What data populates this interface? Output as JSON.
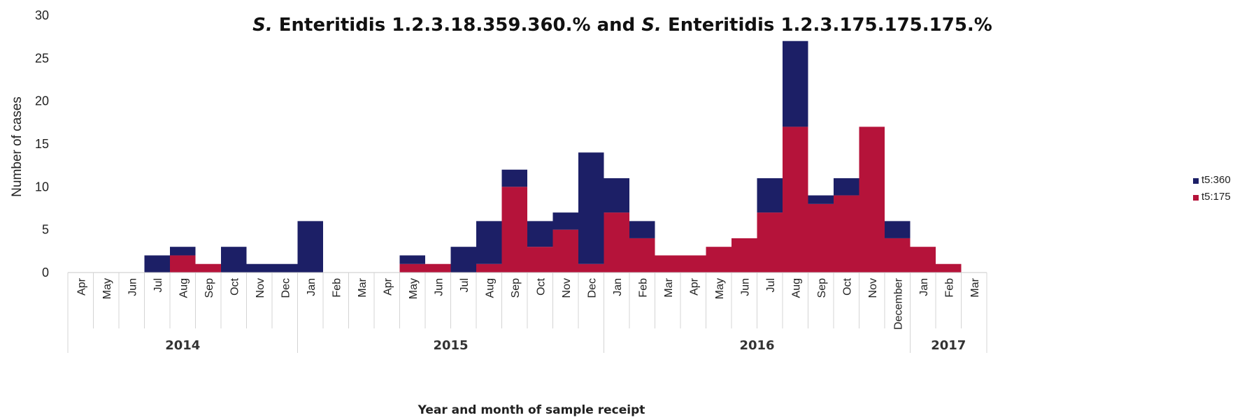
{
  "chart_data": {
    "type": "bar",
    "stacked": true,
    "title_part1": "S.",
    "title_part2": " Enteritidis 1.2.3.18.359.360.% and ",
    "title_part3": "S.",
    "title_part4": " Enteritidis 1.2.3.175.175.175.%",
    "ylabel": "Number of cases",
    "xlabel": "Year and month of sample receipt",
    "ylim": [
      0,
      30
    ],
    "yticks": [
      "0",
      "5",
      "10",
      "15",
      "20",
      "25",
      "30"
    ],
    "grid": false,
    "legend_position": "right",
    "categories": [
      "Apr",
      "May",
      "Jun",
      "Jul",
      "Aug",
      "Sep",
      "Oct",
      "Nov",
      "Dec",
      "Jan",
      "Feb",
      "Mar",
      "Apr",
      "May",
      "Jun",
      "Jul",
      "Aug",
      "Sep",
      "Oct",
      "Nov",
      "Dec",
      "Jan",
      "Feb",
      "Mar",
      "Apr",
      "May",
      "Jun",
      "Jul",
      "Aug",
      "Sep",
      "Oct",
      "Nov",
      "December",
      "Jan",
      "Feb",
      "Mar"
    ],
    "years": [
      {
        "label": "2014",
        "start": 0,
        "end": 9
      },
      {
        "label": "2015",
        "start": 9,
        "end": 21
      },
      {
        "label": "2016",
        "start": 21,
        "end": 33
      },
      {
        "label": "2017",
        "start": 33,
        "end": 36
      }
    ],
    "series": [
      {
        "name": "t5:175",
        "color": "#b5133a",
        "values": [
          0,
          0,
          0,
          0,
          2,
          1,
          0,
          0,
          0,
          0,
          0,
          0,
          0,
          1,
          1,
          0,
          1,
          10,
          3,
          5,
          1,
          7,
          4,
          2,
          2,
          3,
          4,
          7,
          17,
          8,
          9,
          17,
          4,
          3,
          1,
          0
        ]
      },
      {
        "name": "t5:360",
        "color": "#1c1f66",
        "values": [
          0,
          0,
          0,
          2,
          1,
          0,
          3,
          1,
          1,
          6,
          0,
          0,
          0,
          1,
          0,
          3,
          5,
          2,
          3,
          2,
          13,
          4,
          2,
          0,
          0,
          0,
          0,
          4,
          10,
          1,
          2,
          0,
          2,
          0,
          0,
          0
        ]
      }
    ]
  }
}
